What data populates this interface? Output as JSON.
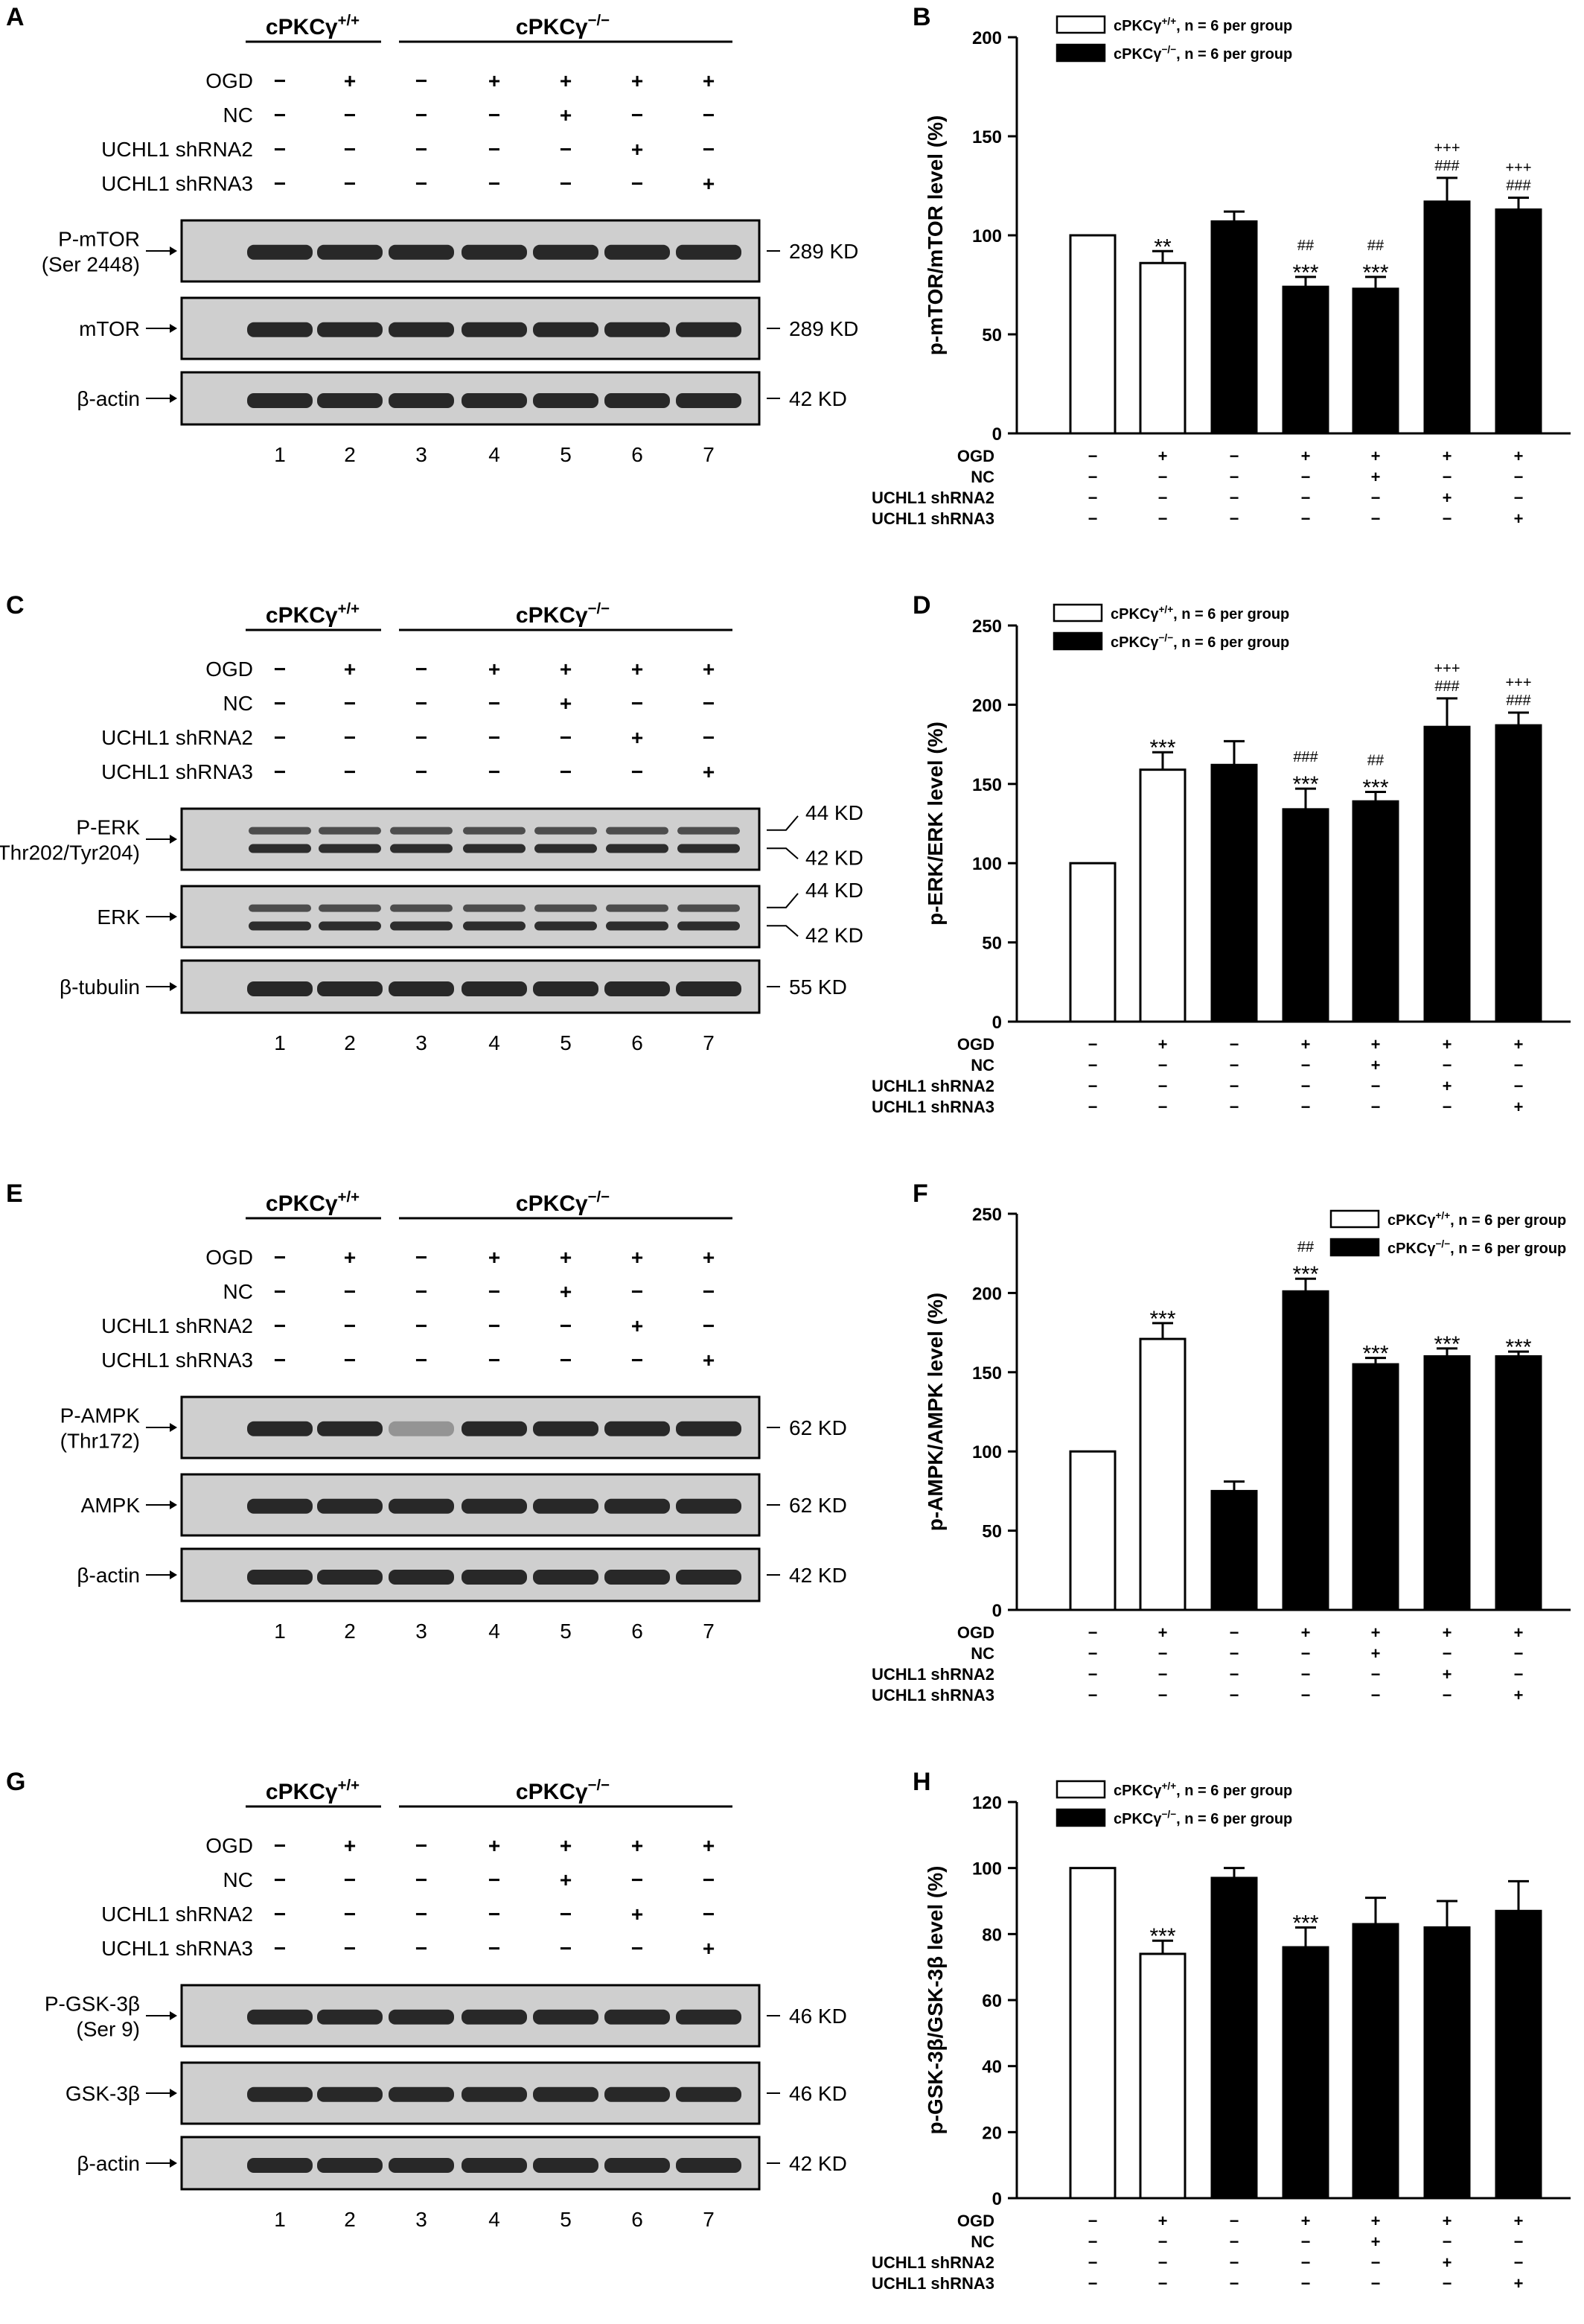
{
  "groups": {
    "wt": "cPKCγ+/+",
    "ko": "cPKCγ−/−"
  },
  "conditions": [
    "OGD",
    "NC",
    "UCHL1 shRNA2",
    "UCHL1 shRNA3"
  ],
  "condition_matrix": [
    [
      "−",
      "+",
      "−",
      "+",
      "+",
      "+",
      "+"
    ],
    [
      "−",
      "−",
      "−",
      "−",
      "+",
      "−",
      "−"
    ],
    [
      "−",
      "−",
      "−",
      "−",
      "−",
      "+",
      "−"
    ],
    [
      "−",
      "−",
      "−",
      "−",
      "−",
      "−",
      "+"
    ]
  ],
  "lane_numbers": [
    "1",
    "2",
    "3",
    "4",
    "5",
    "6",
    "7"
  ],
  "legend": {
    "wt": "cPKCγ+/+, n = 6 per group",
    "ko": "cPKCγ −/−, n = 6 per group"
  },
  "western_panels": [
    {
      "letter": "A",
      "bands": [
        {
          "label": [
            "P-mTOR",
            "(Ser 2448)"
          ],
          "kd": [
            "289 KD"
          ]
        },
        {
          "label": [
            "mTOR"
          ],
          "kd": [
            "289 KD"
          ]
        },
        {
          "label": [
            "β-actin"
          ],
          "kd": [
            "42 KD"
          ]
        }
      ]
    },
    {
      "letter": "C",
      "bands": [
        {
          "label": [
            "P-ERK",
            "(Thr202/Tyr204)"
          ],
          "kd": [
            "44 KD",
            "42 KD"
          ]
        },
        {
          "label": [
            "ERK"
          ],
          "kd": [
            "44 KD",
            "42 KD"
          ]
        },
        {
          "label": [
            "β-tubulin"
          ],
          "kd": [
            "55 KD"
          ]
        }
      ]
    },
    {
      "letter": "E",
      "bands": [
        {
          "label": [
            "P-AMPK",
            "(Thr172)"
          ],
          "kd": [
            "62 KD"
          ]
        },
        {
          "label": [
            "AMPK"
          ],
          "kd": [
            "62 KD"
          ]
        },
        {
          "label": [
            "β-actin"
          ],
          "kd": [
            "42 KD"
          ]
        }
      ]
    },
    {
      "letter": "G",
      "bands": [
        {
          "label": [
            "P-GSK-3β",
            "(Ser 9)"
          ],
          "kd": [
            "46 KD"
          ]
        },
        {
          "label": [
            "GSK-3β"
          ],
          "kd": [
            "46 KD"
          ]
        },
        {
          "label": [
            "β-actin"
          ],
          "kd": [
            "42 KD"
          ]
        }
      ]
    }
  ],
  "chart_data": [
    {
      "type": "bar",
      "letter": "B",
      "ylabel": "p-mTOR/mTOR level (%)",
      "ylim": [
        0,
        200
      ],
      "yticks": [
        0,
        50,
        100,
        150,
        200
      ],
      "categories": [
        "1",
        "2",
        "3",
        "4",
        "5",
        "6",
        "7"
      ],
      "series": [
        {
          "name": "cPKCγ+/+",
          "lanes": [
            0,
            1
          ]
        },
        {
          "name": "cPKCγ −/−",
          "lanes": [
            2,
            3,
            4,
            5,
            6
          ]
        }
      ],
      "values": [
        100,
        86,
        107,
        74,
        73,
        117,
        113
      ],
      "errors": [
        0,
        6,
        5,
        5,
        6,
        12,
        6
      ],
      "annotations": [
        [
          "",
          "**",
          "",
          "***",
          "***",
          "",
          ""
        ],
        [
          "",
          "",
          "",
          "##",
          "##",
          "###",
          "###"
        ],
        [
          "",
          "",
          "",
          "",
          "",
          "+++",
          "+++"
        ]
      ]
    },
    {
      "type": "bar",
      "letter": "D",
      "ylabel": "p-ERK/ERK level (%)",
      "ylim": [
        0,
        250
      ],
      "yticks": [
        0,
        50,
        100,
        150,
        200,
        250
      ],
      "categories": [
        "1",
        "2",
        "3",
        "4",
        "5",
        "6",
        "7"
      ],
      "series": [
        {
          "name": "cPKCγ+/+",
          "lanes": [
            0,
            1
          ]
        },
        {
          "name": "cPKCγ −/−",
          "lanes": [
            2,
            3,
            4,
            5,
            6
          ]
        }
      ],
      "values": [
        100,
        159,
        162,
        134,
        139,
        186,
        187
      ],
      "errors": [
        0,
        11,
        15,
        13,
        6,
        18,
        8
      ],
      "annotations": [
        [
          "",
          "***",
          "",
          "***",
          "***",
          "",
          ""
        ],
        [
          "",
          "",
          "",
          "###",
          "##",
          "###",
          "###"
        ],
        [
          "",
          "",
          "",
          "",
          "",
          "+++",
          "+++"
        ]
      ]
    },
    {
      "type": "bar",
      "letter": "F",
      "ylabel": "p-AMPK/AMPK level (%)",
      "ylim": [
        0,
        250
      ],
      "yticks": [
        0,
        50,
        100,
        150,
        200,
        250
      ],
      "categories": [
        "1",
        "2",
        "3",
        "4",
        "5",
        "6",
        "7"
      ],
      "series": [
        {
          "name": "cPKCγ+/+",
          "lanes": [
            0,
            1
          ]
        },
        {
          "name": "cPKCγ −/−",
          "lanes": [
            2,
            3,
            4,
            5,
            6
          ]
        }
      ],
      "values": [
        100,
        171,
        75,
        201,
        155,
        160,
        160
      ],
      "errors": [
        0,
        10,
        6,
        8,
        4,
        5,
        3
      ],
      "annotations": [
        [
          "",
          "***",
          "",
          "***",
          "***",
          "***",
          "***"
        ],
        [
          "",
          "",
          "",
          "##",
          "",
          "",
          ""
        ],
        [
          "",
          "",
          "",
          "",
          "",
          "",
          ""
        ]
      ]
    },
    {
      "type": "bar",
      "letter": "H",
      "ylabel": "p-GSK-3β/GSK-3β level (%)",
      "ylim": [
        0,
        120
      ],
      "yticks": [
        0,
        20,
        40,
        60,
        80,
        100,
        120
      ],
      "categories": [
        "1",
        "2",
        "3",
        "4",
        "5",
        "6",
        "7"
      ],
      "series": [
        {
          "name": "cPKCγ+/+",
          "lanes": [
            0,
            1
          ]
        },
        {
          "name": "cPKCγ −/−",
          "lanes": [
            2,
            3,
            4,
            5,
            6
          ]
        }
      ],
      "values": [
        100,
        74,
        97,
        76,
        83,
        82,
        87
      ],
      "errors": [
        0,
        4,
        3,
        6,
        8,
        8,
        9
      ],
      "annotations": [
        [
          "",
          "***",
          "",
          "***",
          "",
          "",
          ""
        ],
        [
          "",
          "",
          "",
          "",
          "",
          "",
          ""
        ],
        [
          "",
          "",
          "",
          "",
          "",
          "",
          ""
        ]
      ]
    }
  ]
}
